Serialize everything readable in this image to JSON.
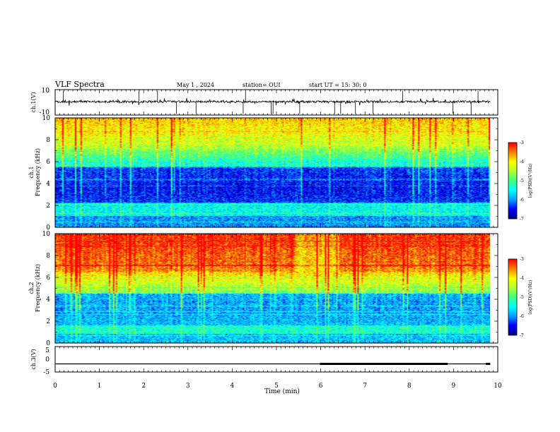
{
  "chart_data": {
    "type": "heatmap",
    "title": "VLF Spectra",
    "header": {
      "date": "May 1 , 2024",
      "station": "station= OUI",
      "start": "start UT = 15: 30: 0"
    },
    "xlabel": "Time (min)",
    "xlim": [
      0,
      10
    ],
    "xticks": [
      "0",
      "1",
      "2",
      "3",
      "4",
      "5",
      "6",
      "7",
      "8",
      "9",
      "10"
    ],
    "panels": [
      {
        "id": "ch1_waveform",
        "type": "line",
        "ylabel": "ch.1(V)",
        "ylim": [
          -10,
          10
        ],
        "ytick_labels": [
          "10",
          "-10"
        ],
        "baseline_value": 0.5
      },
      {
        "id": "ch1_spectrogram",
        "type": "heatmap",
        "ylabel_top": "ch.1",
        "ylabel": "Frequency (kHz)",
        "ylim": [
          0,
          10
        ],
        "yticks": [
          "0",
          "2",
          "4",
          "6",
          "8",
          "10"
        ],
        "colorbar": {
          "label": "log(PSD)(V²/Hz)",
          "range": [
            -7,
            -3
          ],
          "ticks": [
            "-3",
            "-4",
            "-5",
            "-6",
            "-7"
          ]
        }
      },
      {
        "id": "ch2_spectrogram",
        "type": "heatmap",
        "ylabel_top": "ch.2",
        "ylabel": "Frequency (kHz)",
        "ylim": [
          0,
          10
        ],
        "yticks": [
          "0",
          "2",
          "4",
          "6",
          "8",
          "10"
        ],
        "colorbar": {
          "label": "log(PSD)(V²/Hz)",
          "range": [
            -7,
            -3
          ],
          "ticks": [
            "-3",
            "-4",
            "-5",
            "-6",
            "-7"
          ]
        }
      },
      {
        "id": "ch3_waveform",
        "type": "line",
        "ylabel": "ch.3(V)",
        "ylim": [
          -5,
          5
        ],
        "ytick_labels": [
          "5",
          "0",
          "-5"
        ],
        "segments": [
          {
            "x0": 0.0,
            "x1": 5.98,
            "y": -1.8,
            "weight": "thin"
          },
          {
            "x0": 5.98,
            "x1": 8.87,
            "y": -1.8,
            "weight": "thick"
          },
          {
            "x0": 8.87,
            "x1": 9.73,
            "y": -1.8,
            "weight": "thin"
          },
          {
            "x0": 9.73,
            "x1": 9.83,
            "y": -1.8,
            "weight": "thick"
          }
        ]
      }
    ],
    "colormap": [
      "#000080",
      "#0000ff",
      "#00a0ff",
      "#00ffff",
      "#40ff80",
      "#b0ff30",
      "#ffff00",
      "#ff8000",
      "#ff0000"
    ]
  }
}
